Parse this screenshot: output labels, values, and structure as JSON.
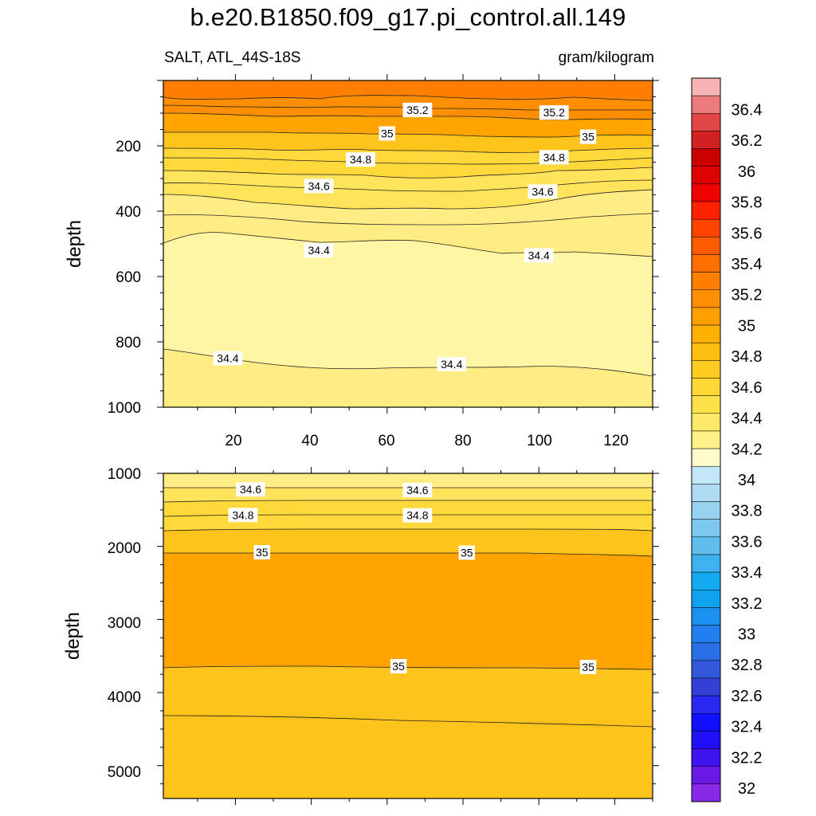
{
  "title": "b.e20.B1850.f09_g17.pi_control.all.149",
  "subtitle_left": "SALT, ATL_44S-18S",
  "subtitle_right": "gram/kilogram",
  "chart_data": [
    {
      "type": "heatmap",
      "panel": "upper",
      "ylabel": "depth",
      "xlabel": "",
      "xlim": [
        1,
        130
      ],
      "ylim": [
        1000,
        0
      ],
      "x_ticks": [
        "20",
        "40",
        "60",
        "80",
        "100",
        "120"
      ],
      "y_ticks": [
        "200",
        "400",
        "600",
        "800",
        "1000"
      ],
      "contour_labels": [
        {
          "text": "35.2",
          "x": 68,
          "depth": 90
        },
        {
          "text": "35.2",
          "x": 104,
          "depth": 98
        },
        {
          "text": "35",
          "x": 60,
          "depth": 162
        },
        {
          "text": "35",
          "x": 113,
          "depth": 172
        },
        {
          "text": "34.8",
          "x": 53,
          "depth": 242
        },
        {
          "text": "34.8",
          "x": 104,
          "depth": 235
        },
        {
          "text": "34.6",
          "x": 42,
          "depth": 323
        },
        {
          "text": "34.6",
          "x": 101,
          "depth": 340
        },
        {
          "text": "34.4",
          "x": 42,
          "depth": 520
        },
        {
          "text": "34.4",
          "x": 100,
          "depth": 535
        },
        {
          "text": "34.4",
          "x": 18,
          "depth": 850
        },
        {
          "text": "34.4",
          "x": 77,
          "depth": 868
        }
      ]
    },
    {
      "type": "heatmap",
      "panel": "lower",
      "ylabel": "depth",
      "xlabel": "",
      "xlim": [
        1,
        130
      ],
      "ylim": [
        5450,
        1000
      ],
      "y_ticks": [
        "1000",
        "2000",
        "3000",
        "4000",
        "5000"
      ],
      "contour_labels": [
        {
          "text": "34.6",
          "x": 24,
          "depth": 1220
        },
        {
          "text": "34.6",
          "x": 68,
          "depth": 1230
        },
        {
          "text": "34.8",
          "x": 22,
          "depth": 1570
        },
        {
          "text": "34.8",
          "x": 68,
          "depth": 1575
        },
        {
          "text": "35",
          "x": 27,
          "depth": 2080
        },
        {
          "text": "35",
          "x": 81,
          "depth": 2085
        },
        {
          "text": "35",
          "x": 63,
          "depth": 3640
        },
        {
          "text": "35",
          "x": 113,
          "depth": 3650
        }
      ]
    }
  ],
  "colorbar": {
    "labels": [
      "36.4",
      "36.2",
      "36",
      "35.8",
      "35.6",
      "35.4",
      "35.2",
      "35",
      "34.8",
      "34.6",
      "34.4",
      "34.2",
      "34",
      "33.8",
      "33.6",
      "33.4",
      "33.2",
      "33",
      "32.8",
      "32.6",
      "32.4",
      "32.2",
      "32"
    ],
    "colors": [
      "#f8b4b4",
      "#ee7b7b",
      "#e24545",
      "#d32020",
      "#c80000",
      "#dd0000",
      "#f00000",
      "#ff2200",
      "#ff4400",
      "#ff5a00",
      "#ff6e00",
      "#ff7f00",
      "#ff8f00",
      "#ffa000",
      "#ffb000",
      "#ffbf10",
      "#ffcc22",
      "#ffd835",
      "#ffe24a",
      "#ffe966",
      "#fff088",
      "#fffaca",
      "#c2e7f7",
      "#aedcf2",
      "#97d2f0",
      "#7ec8ef",
      "#60bdee",
      "#3cb2ee",
      "#12aaf0",
      "#10a0f0",
      "#1a90f0",
      "#2080ee",
      "#2a6ee8",
      "#3358dc",
      "#3240d8",
      "#2828f0",
      "#1010ff",
      "#2010f8",
      "#4014f0",
      "#6a18e8",
      "#8a28e8"
    ]
  }
}
